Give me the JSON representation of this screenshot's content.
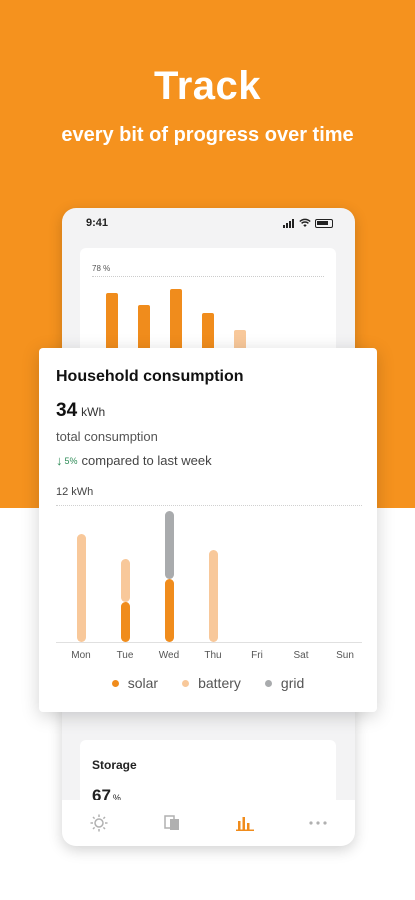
{
  "hero": {
    "title": "Track",
    "subtitle": "every bit of progress over time"
  },
  "phone": {
    "status_time": "9:41",
    "background_chart": {
      "ymax_label": "78 %",
      "values": [
        95,
        78,
        100,
        68,
        45
      ]
    },
    "storage": {
      "title": "Storage",
      "value": "67",
      "unit": "%"
    },
    "tabs": [
      "sun-icon",
      "devices-icon",
      "chart-icon",
      "more-icon"
    ]
  },
  "card": {
    "title": "Household consumption",
    "value": "34",
    "unit": "kWh",
    "subtitle": "total consumption",
    "compare_pct": "5%",
    "compare_text": "compared to last week",
    "ymax_label": "12 kWh",
    "legend": {
      "solar": "solar",
      "battery": "battery",
      "grid": "grid"
    }
  },
  "colors": {
    "solar": "#f08c1c",
    "battery": "#f8c89a",
    "grid": "#a9abad",
    "accent": "#f5921e"
  },
  "chart_data": {
    "type": "bar",
    "stacked": true,
    "categories": [
      "Mon",
      "Tue",
      "Wed",
      "Thu",
      "Fri",
      "Sat",
      "Sun"
    ],
    "ymax": 12,
    "ymax_label": "12 kWh",
    "series": [
      {
        "name": "solar",
        "values": [
          0,
          3.5,
          5.5,
          0,
          0,
          0,
          0
        ]
      },
      {
        "name": "battery",
        "values": [
          9.5,
          4,
          0,
          8.1,
          0,
          0,
          0
        ]
      },
      {
        "name": "grid",
        "values": [
          0,
          0,
          6.2,
          0,
          0,
          0,
          0
        ]
      }
    ]
  }
}
